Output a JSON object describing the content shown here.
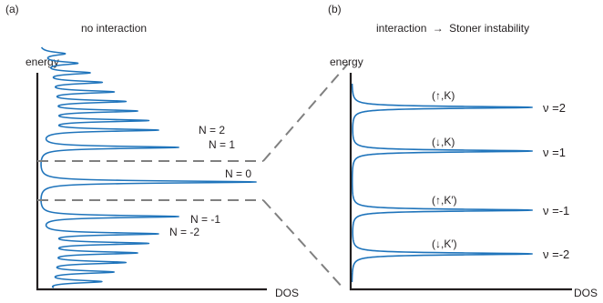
{
  "panel_a": {
    "tag": "(a)",
    "title": "no interaction",
    "ylabel": "energy",
    "xlabel": "DOS",
    "levels": [
      {
        "label": "N = 2",
        "index": 2
      },
      {
        "label": "N = 1",
        "index": 1
      },
      {
        "label": "N = 0",
        "index": 0
      },
      {
        "label": "N = -1",
        "index": -1
      },
      {
        "label": "N = -2",
        "index": -2
      }
    ]
  },
  "panel_b": {
    "tag": "(b)",
    "title_left": "interaction",
    "title_arrow": "→",
    "title_right": "Stoner instability",
    "ylabel": "energy",
    "xlabel": "DOS",
    "peaks": [
      {
        "state": "(↑,K)",
        "nu": "ν =2"
      },
      {
        "state": "(↓,K)",
        "nu": "ν =1"
      },
      {
        "state": "(↑,K′)",
        "nu": "ν =-1"
      },
      {
        "state": "(↓,K′)",
        "nu": "ν =-2"
      }
    ]
  },
  "colors": {
    "trace": "#1f74bb",
    "axis": "#231f20",
    "guide": "#808080"
  }
}
